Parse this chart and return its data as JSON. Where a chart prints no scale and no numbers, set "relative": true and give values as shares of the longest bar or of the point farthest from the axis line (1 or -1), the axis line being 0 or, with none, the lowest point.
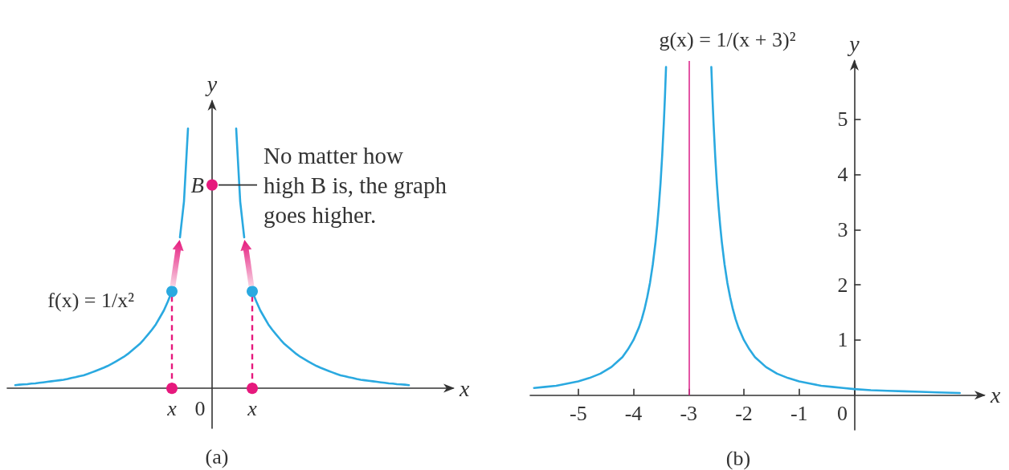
{
  "chart_data": [
    {
      "type": "line",
      "relative": true,
      "title": "(a)",
      "xlabel": "x",
      "ylabel": "y",
      "tick_labels": "x",
      "categories": [
        null,
        null,
        null,
        null,
        null,
        null,
        null,
        null,
        null,
        null,
        null,
        null,
        null,
        null,
        null,
        null,
        null,
        null,
        null,
        null,
        null,
        null,
        null,
        null,
        null,
        null,
        null,
        null,
        null,
        null,
        null,
        null,
        null,
        null,
        null,
        null,
        null,
        null,
        null,
        null,
        null,
        "x",
        null,
        null,
        null,
        null,
        null,
        null,
        "0",
        null,
        null,
        null,
        null,
        null,
        null,
        null,
        null,
        null,
        null,
        null,
        null,
        "x",
        null,
        null,
        null,
        null,
        null,
        null,
        null,
        null,
        null,
        null,
        null,
        null,
        null,
        null,
        null,
        null,
        null,
        null,
        null,
        null,
        null,
        null,
        null,
        null,
        null,
        null,
        null,
        null,
        null,
        null,
        null,
        null,
        null,
        null,
        null,
        null,
        null,
        null,
        null,
        null,
        null,
        null,
        null,
        null,
        null,
        null,
        null,
        null,
        null,
        null
      ],
      "annotations": [
        "No matter how high B is, the graph goes higher."
      ],
      "series": [
        {
          "name": "f(x) = 1/x²",
          "color": "#2aa9e0",
          "values": [
            null,
            null,
            0.012,
            0.014,
            0.015,
            0.016,
            0.018,
            0.019,
            0.021,
            0.023,
            0.025,
            0.027,
            0.029,
            0.031,
            0.033,
            0.036,
            0.04,
            0.043,
            0.047,
            0.05,
            0.055,
            0.061,
            0.067,
            0.073,
            0.079,
            0.086,
            0.094,
            0.103,
            0.112,
            0.121,
            0.132,
            0.145,
            0.158,
            0.171,
            0.188,
            0.206,
            0.225,
            0.246,
            0.273,
            0.3,
            0.335,
            0.373,
            null,
            0.581,
            0.719,
            1.0,
            null,
            null,
            null,
            null,
            null,
            null,
            null,
            null,
            null,
            null,
            null,
            1.0,
            0.719,
            0.581,
            null,
            0.373,
            0.335,
            0.3,
            0.273,
            0.246,
            0.225,
            0.206,
            0.188,
            0.171,
            0.158,
            0.145,
            0.132,
            0.121,
            0.112,
            0.103,
            0.094,
            0.086,
            0.079,
            0.073,
            0.067,
            0.061,
            0.055,
            0.05,
            0.047,
            0.043,
            0.04,
            0.036,
            0.033,
            0.031,
            0.029,
            0.027,
            0.025,
            0.023,
            0.021,
            0.019,
            0.018,
            0.016,
            0.015,
            0.014,
            0.012,
            null,
            null,
            null,
            null,
            null,
            null,
            null,
            null,
            null,
            null,
            null
          ]
        },
        {
          "type": "lollipop",
          "color": "#2aa9e0",
          "line_style": "dashed",
          "marker": "circle",
          "values": [
            null,
            null,
            null,
            null,
            null,
            null,
            null,
            null,
            null,
            null,
            null,
            null,
            null,
            null,
            null,
            null,
            null,
            null,
            null,
            null,
            null,
            null,
            null,
            null,
            null,
            null,
            null,
            null,
            null,
            null,
            null,
            null,
            null,
            null,
            null,
            null,
            null,
            null,
            null,
            null,
            null,
            0.373,
            null,
            null,
            null,
            null,
            null,
            null,
            null,
            null,
            null,
            null,
            null,
            null,
            null,
            null,
            null,
            null,
            null,
            null,
            null,
            0.373,
            null,
            null,
            null,
            null,
            null,
            null,
            null,
            null,
            null,
            null,
            null,
            null,
            null,
            null,
            null,
            null,
            null,
            null,
            null,
            null,
            null,
            null,
            null,
            null,
            null,
            null,
            null,
            null,
            null,
            null,
            null,
            null,
            null,
            null,
            null,
            null,
            null,
            null,
            null,
            null,
            null,
            null,
            null,
            null,
            null,
            null,
            null,
            null,
            null,
            null
          ]
        },
        {
          "type": "scatter",
          "color": "#e6197d",
          "marker": "circle",
          "values": [
            null,
            null,
            null,
            null,
            null,
            null,
            null,
            null,
            null,
            null,
            null,
            null,
            null,
            null,
            null,
            null,
            null,
            null,
            null,
            null,
            null,
            null,
            null,
            null,
            null,
            null,
            null,
            null,
            null,
            null,
            null,
            null,
            null,
            null,
            null,
            null,
            null,
            null,
            null,
            null,
            null,
            0,
            null,
            null,
            null,
            null,
            null,
            null,
            null,
            null,
            null,
            null,
            null,
            null,
            null,
            null,
            null,
            null,
            null,
            null,
            null,
            0,
            null,
            null,
            null,
            null,
            null,
            null,
            null,
            null,
            null,
            null,
            null,
            null,
            null,
            null,
            null,
            null,
            null,
            null,
            null,
            null,
            null,
            null,
            null,
            null,
            null,
            null,
            null,
            null,
            null,
            null,
            null,
            null,
            null,
            null,
            null,
            null,
            null,
            null,
            null,
            null,
            null,
            null,
            null,
            null,
            null,
            null,
            null,
            null,
            null,
            null
          ]
        },
        {
          "type": "scatter",
          "name": "B",
          "color": "#e6197d",
          "marker": "circle",
          "values": [
            null,
            null,
            null,
            null,
            null,
            null,
            null,
            null,
            null,
            null,
            null,
            null,
            null,
            null,
            null,
            null,
            null,
            null,
            null,
            null,
            null,
            null,
            null,
            null,
            null,
            null,
            null,
            null,
            null,
            null,
            null,
            null,
            null,
            null,
            null,
            null,
            null,
            null,
            null,
            null,
            null,
            null,
            null,
            null,
            null,
            null,
            null,
            null,
            null,
            null,
            null,
            0.783,
            null,
            null,
            null,
            null,
            null,
            null,
            null,
            null,
            null,
            null,
            null,
            null,
            null,
            null,
            null,
            null,
            null,
            null,
            null,
            null,
            null,
            null,
            null,
            null,
            null,
            null,
            null,
            null,
            null,
            null,
            null,
            null,
            null,
            null,
            null,
            null,
            null,
            null,
            null,
            null,
            null,
            null,
            null,
            null,
            null,
            null,
            null,
            null,
            null,
            null,
            null,
            null,
            null,
            null,
            null,
            null,
            null,
            null,
            null,
            null
          ]
        }
      ]
    },
    {
      "type": "line",
      "title": "(b)",
      "xlabel": "x",
      "ylabel": "y",
      "xlim": [
        -5.87,
        2.35
      ],
      "ylim": [
        -0.63,
        6.06
      ],
      "xticks": [
        -5,
        -4,
        -3,
        -2,
        -1,
        0
      ],
      "yticks": [
        1,
        2,
        3,
        4,
        5
      ],
      "ref_lines": [
        {
          "axis": "x",
          "value": -3,
          "color": "#dd2a8e"
        }
      ],
      "series": [
        {
          "name": "g(x) = 1/(x + 3)²",
          "color": "#2aa9e0",
          "x": [
            -5.8,
            -5.6,
            -5.4,
            -5.2,
            -5,
            -4.8,
            -4.6,
            -4.4,
            -4.2,
            -4.1,
            -4,
            -3.9,
            -3.85,
            -3.8,
            -3.75,
            -3.7,
            -3.65,
            -3.6,
            -3.57,
            -3.54,
            -3.51,
            -3.48,
            -3.45,
            -3.43,
            -3.41,
            -3,
            -2.59,
            -2.57,
            -2.55,
            -2.52,
            -2.49,
            -2.46,
            -2.43,
            -2.4,
            -2.35,
            -2.3,
            -2.25,
            -2.2,
            -2.15,
            -2.1,
            -2,
            -1.9,
            -1.8,
            -1.6,
            -1.4,
            -1.2,
            -1,
            -0.8,
            -0.6,
            -0.4,
            -0.2,
            0,
            0.3,
            0.6,
            0.9,
            1.2,
            1.5,
            1.91
          ],
          "values": [
            0.13,
            0.15,
            0.17,
            0.21,
            0.25,
            0.31,
            0.39,
            0.51,
            0.69,
            0.83,
            1,
            1.23,
            1.38,
            1.56,
            1.78,
            2.04,
            2.37,
            2.78,
            3.08,
            3.43,
            3.84,
            4.34,
            4.94,
            5.41,
            5.95,
            null,
            5.95,
            5.41,
            4.94,
            4.34,
            3.84,
            3.43,
            3.08,
            2.78,
            2.37,
            2.04,
            1.78,
            1.56,
            1.38,
            1.23,
            1,
            0.83,
            0.69,
            0.51,
            0.39,
            0.31,
            0.25,
            0.21,
            0.17,
            0.15,
            0.13,
            0.11,
            0.09,
            0.08,
            0.07,
            0.06,
            0.05,
            0.04
          ]
        }
      ]
    }
  ]
}
